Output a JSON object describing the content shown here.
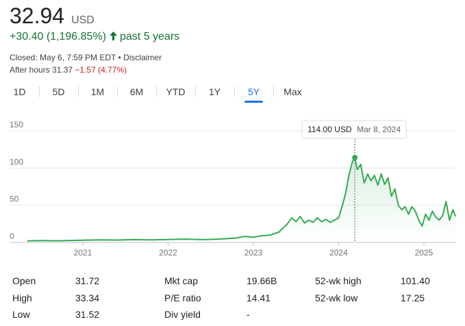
{
  "quote": {
    "price": "32.94",
    "currency": "USD",
    "change": "+30.40 (1,196.85%)",
    "period": "past 5 years",
    "closed": "Closed: May 6, 7:59 PM EDT",
    "separator": "•",
    "disclaimer": "Disclaimer",
    "after_hours_label": "After hours 31.37",
    "after_hours_change": "−1.57 (4.77%)"
  },
  "tabs": [
    {
      "label": "1D"
    },
    {
      "label": "5D"
    },
    {
      "label": "1M"
    },
    {
      "label": "6M"
    },
    {
      "label": "YTD"
    },
    {
      "label": "1Y"
    },
    {
      "label": "5Y"
    },
    {
      "label": "Max"
    }
  ],
  "active_tab": "5Y",
  "colors": {
    "line": "#34a853",
    "positive": "#137333",
    "negative": "#c5221f",
    "accent": "#1a73e8"
  },
  "tooltip": {
    "value": "114.00 USD",
    "date": "Mar 8, 2024"
  },
  "chart_data": {
    "type": "area",
    "y_ticks": [
      0,
      50,
      100,
      150
    ],
    "y_tick_labels": [
      "0",
      "50",
      "100",
      "150"
    ],
    "ylim": [
      0,
      150
    ],
    "x_tick_labels": [
      "2021",
      "2022",
      "2023",
      "2024",
      "2025"
    ],
    "x_tick_dates": [
      2021.0,
      2022.0,
      2023.0,
      2024.0,
      2025.0
    ],
    "xlim": [
      2020.35,
      2025.37
    ],
    "highlight": {
      "date": 2024.19,
      "value": 114.0
    },
    "series": [
      {
        "x": [
          2020.35,
          2020.5,
          2020.7,
          2020.9,
          2021.0,
          2021.2,
          2021.4,
          2021.6,
          2021.8,
          2022.0,
          2022.2,
          2022.4,
          2022.6,
          2022.8,
          2022.9,
          2023.0,
          2023.1,
          2023.2,
          2023.3,
          2023.4,
          2023.45,
          2023.5,
          2023.55,
          2023.6,
          2023.65,
          2023.7,
          2023.75,
          2023.8,
          2023.85,
          2023.9,
          2023.95,
          2024.0,
          2024.04,
          2024.08,
          2024.12,
          2024.16,
          2024.19,
          2024.22,
          2024.26,
          2024.3,
          2024.34,
          2024.38,
          2024.42,
          2024.46,
          2024.5,
          2024.54,
          2024.58,
          2024.62,
          2024.66,
          2024.7,
          2024.74,
          2024.78,
          2024.82,
          2024.86,
          2024.9,
          2024.94,
          2024.98,
          2025.02,
          2025.06,
          2025.1,
          2025.14,
          2025.18,
          2025.22,
          2025.26,
          2025.3,
          2025.34,
          2025.37
        ],
        "values": [
          2,
          2.5,
          2.2,
          2.8,
          3,
          3.5,
          3.2,
          3.8,
          3.5,
          4,
          4.5,
          3.8,
          4.5,
          6,
          8,
          7,
          9,
          10,
          14,
          25,
          33,
          28,
          35,
          26,
          30,
          27,
          33,
          28,
          31,
          27,
          30,
          33,
          48,
          65,
          90,
          108,
          114,
          98,
          105,
          80,
          92,
          83,
          90,
          77,
          92,
          78,
          87,
          62,
          72,
          50,
          44,
          48,
          38,
          48,
          42,
          30,
          22,
          38,
          30,
          42,
          34,
          30,
          36,
          55,
          30,
          44,
          35
        ]
      }
    ]
  },
  "stats": [
    [
      {
        "label": "Open",
        "value": "31.72"
      },
      {
        "label": "Mkt cap",
        "value": "19.66B"
      },
      {
        "label": "52-wk high",
        "value": "101.40"
      }
    ],
    [
      {
        "label": "High",
        "value": "33.34"
      },
      {
        "label": "P/E ratio",
        "value": "14.41"
      },
      {
        "label": "52-wk low",
        "value": "17.25"
      }
    ],
    [
      {
        "label": "Low",
        "value": "31.52"
      },
      {
        "label": "Div yield",
        "value": "-"
      }
    ]
  ]
}
